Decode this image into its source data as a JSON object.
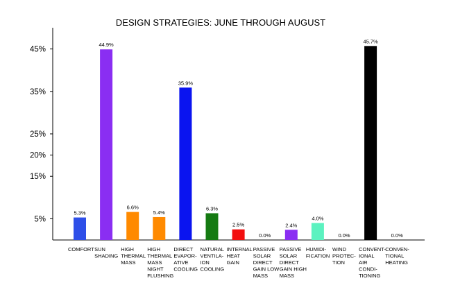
{
  "chart_data": {
    "type": "bar",
    "title": "DESIGN STRATEGIES: JUNE THROUGH AUGUST",
    "xlabel": "",
    "ylabel": "",
    "ylim": [
      0,
      50
    ],
    "yticks": [
      5,
      15,
      20,
      25,
      35,
      45
    ],
    "ytick_labels": [
      "5%",
      "15%",
      "20%",
      "25%",
      "35%",
      "45%"
    ],
    "grid": false,
    "legend": "none",
    "categories": [
      "COMFORT",
      "SUN SHADING",
      "HIGH THERMAL MASS",
      "HIGH THERMAL MASS NIGHT FLUSHING",
      "DIRECT EVAPORATIVE COOLING",
      "NATURAL VENTILATION COOLING",
      "INTERNAL HEAT GAIN",
      "PASSIVE SOLAR DIRECT GAIN LOW MASS",
      "PASSIVE SOLAR DIRECT GAIN HIGH MASS",
      "HUMIDIFICATION",
      "WIND PROTECTION",
      "CONVENTIONAL AIR CONDITIONING",
      "CONVENTIONAL HEATING"
    ],
    "category_lines": [
      [
        "COMFORT"
      ],
      [
        "SUN",
        "SHADING"
      ],
      [
        "HIGH",
        "THERMAL",
        "MASS"
      ],
      [
        "HIGH",
        "THERMAL",
        "MASS",
        "NIGHT",
        "FLUSHING"
      ],
      [
        "DIRECT",
        "EVAPOR-",
        "ATIVE",
        "COOLING"
      ],
      [
        "NATURAL",
        "VENTILA-",
        "ION",
        "COOLING"
      ],
      [
        "INTERNAL",
        "HEAT",
        "GAIN"
      ],
      [
        "PASSIVE",
        "SOLAR",
        "DIRECT",
        "GAIN LOW",
        "MASS"
      ],
      [
        "PASSIVE",
        "SOLAR",
        "DIRECT",
        "GAIN HIGH",
        "MASS"
      ],
      [
        "HUMIDI-",
        "FICATION"
      ],
      [
        "WIND",
        "PROTEC-",
        "TION"
      ],
      [
        "CONVENT-",
        "IONAL",
        "AIR",
        "CONDI-",
        "TIONING"
      ],
      [
        "CONVEN-",
        "TIONAL",
        "HEATING"
      ]
    ],
    "values": [
      5.3,
      44.9,
      6.6,
      5.4,
      35.9,
      6.3,
      2.5,
      0.0,
      2.4,
      4.0,
      0.0,
      45.7,
      0.0
    ],
    "value_labels": [
      "5.3%",
      "44.9%",
      "6.6%",
      "5.4%",
      "35.9%",
      "6.3%",
      "2.5%",
      "0.0%",
      "2.4%",
      "4.0%",
      "0.0%",
      "45.7%",
      "0.0%"
    ],
    "colors": [
      "#2E4FE8",
      "#8A2EF2",
      "#FF8A00",
      "#FF8A00",
      "#0A14F0",
      "#157A12",
      "#F20F0F",
      "#FFFFFF",
      "#8A2EF2",
      "#5CF2C0",
      "#FFFFFF",
      "#000000",
      "#FFFFFF"
    ]
  }
}
